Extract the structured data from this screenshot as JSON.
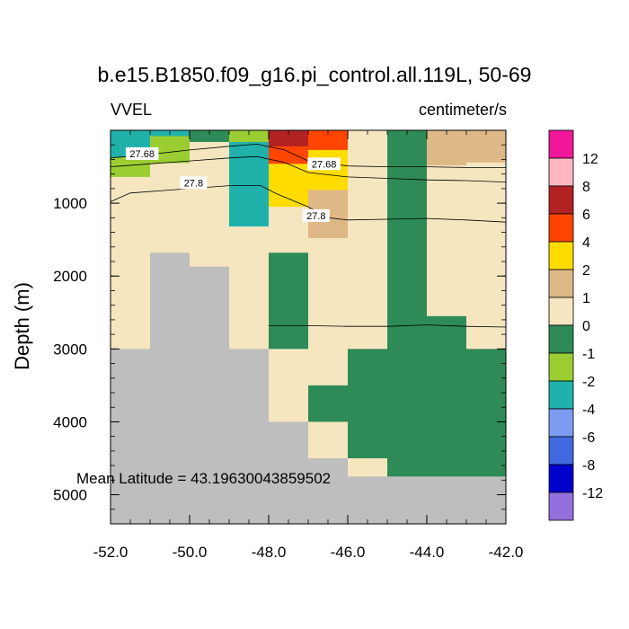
{
  "chart_data": {
    "type": "heatmap",
    "title": "b.e15.B1850.f09_g16.pi_control.all.119L, 50-69",
    "subtitle_left": "VVEL",
    "subtitle_right": "centimeter/s",
    "xlabel": "",
    "ylabel": "Depth (m)",
    "xlim": [
      -52.0,
      -42.0
    ],
    "ylim": [
      5400,
      0
    ],
    "x_ticks": [
      -52.0,
      -50.0,
      -48.0,
      -46.0,
      -44.0,
      -42.0
    ],
    "x_tick_labels": [
      "-52.0",
      "-50.0",
      "-48.0",
      "-46.0",
      "-44.0",
      "-42.0"
    ],
    "y_ticks": [
      1000,
      2000,
      3000,
      4000,
      5000
    ],
    "y_tick_labels": [
      "1000",
      "2000",
      "3000",
      "4000",
      "5000"
    ],
    "annotation": "Mean Latitude = 43.19630043859502",
    "land_color": "#bebebe",
    "colorbar": {
      "labels": [
        "12",
        "8",
        "6",
        "4",
        "2",
        "1",
        "0",
        "-1",
        "-2",
        "-4",
        "-6",
        "-8",
        "-12"
      ],
      "colors_top_to_bottom": [
        "#f0179a",
        "#ffb6c1",
        "#b22222",
        "#ff4500",
        "#ffdc00",
        "#deb887",
        "#f5e6c0",
        "#2e8b57",
        "#9acd32",
        "#20b2aa",
        "#7b9cf0",
        "#4169e1",
        "#0000cd",
        "#9370db"
      ]
    },
    "cells": [
      {
        "x0": -52.0,
        "x1": -51.0,
        "d0": 0,
        "d1": 370,
        "c": "#20b2aa"
      },
      {
        "x0": -52.0,
        "x1": -51.0,
        "d0": 370,
        "d1": 640,
        "c": "#9acd32"
      },
      {
        "x0": -52.0,
        "x1": -51.0,
        "d0": 640,
        "d1": 3000,
        "c": "#f5e6c0"
      },
      {
        "x0": -52.0,
        "x1": -51.0,
        "d0": 3000,
        "d1": 5400,
        "c": "#bebebe"
      },
      {
        "x0": -51.0,
        "x1": -50.0,
        "d0": 0,
        "d1": 80,
        "c": "#20b2aa"
      },
      {
        "x0": -51.0,
        "x1": -50.0,
        "d0": 80,
        "d1": 450,
        "c": "#9acd32"
      },
      {
        "x0": -51.0,
        "x1": -50.0,
        "d0": 450,
        "d1": 1680,
        "c": "#f5e6c0"
      },
      {
        "x0": -51.0,
        "x1": -50.0,
        "d0": 1680,
        "d1": 5400,
        "c": "#bebebe"
      },
      {
        "x0": -50.0,
        "x1": -49.0,
        "d0": 0,
        "d1": 160,
        "c": "#2e8b57"
      },
      {
        "x0": -50.0,
        "x1": -49.0,
        "d0": 160,
        "d1": 1870,
        "c": "#f5e6c0"
      },
      {
        "x0": -50.0,
        "x1": -49.0,
        "d0": 1870,
        "d1": 5400,
        "c": "#bebebe"
      },
      {
        "x0": -49.0,
        "x1": -48.0,
        "d0": 0,
        "d1": 160,
        "c": "#9acd32"
      },
      {
        "x0": -49.0,
        "x1": -48.0,
        "d0": 160,
        "d1": 1320,
        "c": "#20b2aa"
      },
      {
        "x0": -49.0,
        "x1": -48.0,
        "d0": 1320,
        "d1": 3000,
        "c": "#f5e6c0"
      },
      {
        "x0": -49.0,
        "x1": -48.0,
        "d0": 3000,
        "d1": 5400,
        "c": "#bebebe"
      },
      {
        "x0": -48.0,
        "x1": -47.0,
        "d0": 0,
        "d1": 220,
        "c": "#b22222"
      },
      {
        "x0": -48.0,
        "x1": -47.0,
        "d0": 220,
        "d1": 460,
        "c": "#ff4500"
      },
      {
        "x0": -48.0,
        "x1": -47.0,
        "d0": 460,
        "d1": 1050,
        "c": "#ffdc00"
      },
      {
        "x0": -48.0,
        "x1": -47.0,
        "d0": 1050,
        "d1": 1680,
        "c": "#f5e6c0"
      },
      {
        "x0": -48.0,
        "x1": -47.0,
        "d0": 1680,
        "d1": 3000,
        "c": "#2e8b57"
      },
      {
        "x0": -48.0,
        "x1": -47.0,
        "d0": 3000,
        "d1": 4000,
        "c": "#f5e6c0"
      },
      {
        "x0": -48.0,
        "x1": -47.0,
        "d0": 4000,
        "d1": 5400,
        "c": "#bebebe"
      },
      {
        "x0": -47.0,
        "x1": -46.0,
        "d0": 0,
        "d1": 270,
        "c": "#ff4500"
      },
      {
        "x0": -47.0,
        "x1": -46.0,
        "d0": 270,
        "d1": 820,
        "c": "#ffdc00"
      },
      {
        "x0": -47.0,
        "x1": -46.0,
        "d0": 820,
        "d1": 1480,
        "c": "#deb887"
      },
      {
        "x0": -47.0,
        "x1": -46.0,
        "d0": 1480,
        "d1": 3500,
        "c": "#f5e6c0"
      },
      {
        "x0": -47.0,
        "x1": -46.0,
        "d0": 3500,
        "d1": 4000,
        "c": "#2e8b57"
      },
      {
        "x0": -47.0,
        "x1": -46.0,
        "d0": 4000,
        "d1": 4500,
        "c": "#f5e6c0"
      },
      {
        "x0": -47.0,
        "x1": -46.0,
        "d0": 4500,
        "d1": 5400,
        "c": "#bebebe"
      },
      {
        "x0": -46.0,
        "x1": -45.0,
        "d0": 0,
        "d1": 3000,
        "c": "#f5e6c0"
      },
      {
        "x0": -46.0,
        "x1": -45.0,
        "d0": 3000,
        "d1": 4500,
        "c": "#2e8b57"
      },
      {
        "x0": -46.0,
        "x1": -45.0,
        "d0": 4500,
        "d1": 4750,
        "c": "#f5e6c0"
      },
      {
        "x0": -46.0,
        "x1": -45.0,
        "d0": 4750,
        "d1": 5400,
        "c": "#bebebe"
      },
      {
        "x0": -45.0,
        "x1": -44.0,
        "d0": 0,
        "d1": 4750,
        "c": "#2e8b57"
      },
      {
        "x0": -45.0,
        "x1": -44.0,
        "d0": 4750,
        "d1": 5400,
        "c": "#bebebe"
      },
      {
        "x0": -44.0,
        "x1": -43.0,
        "d0": 0,
        "d1": 480,
        "c": "#deb887"
      },
      {
        "x0": -44.0,
        "x1": -43.0,
        "d0": 480,
        "d1": 2550,
        "c": "#f5e6c0"
      },
      {
        "x0": -44.0,
        "x1": -43.0,
        "d0": 2550,
        "d1": 4750,
        "c": "#2e8b57"
      },
      {
        "x0": -44.0,
        "x1": -43.0,
        "d0": 4750,
        "d1": 5400,
        "c": "#bebebe"
      },
      {
        "x0": -43.0,
        "x1": -42.0,
        "d0": 0,
        "d1": 440,
        "c": "#deb887"
      },
      {
        "x0": -43.0,
        "x1": -42.0,
        "d0": 440,
        "d1": 3000,
        "c": "#f5e6c0"
      },
      {
        "x0": -43.0,
        "x1": -42.0,
        "d0": 3000,
        "d1": 4750,
        "c": "#2e8b57"
      },
      {
        "x0": -43.0,
        "x1": -42.0,
        "d0": 4750,
        "d1": 5400,
        "c": "#bebebe"
      }
    ],
    "contours": [
      {
        "level": "27.68",
        "points": [
          [
            -52.0,
            380
          ],
          [
            -51.0,
            330
          ],
          [
            -50.0,
            270
          ],
          [
            -49.0,
            220
          ],
          [
            -48.3,
            190
          ],
          [
            -47.6,
            270
          ],
          [
            -47.0,
            420
          ],
          [
            -46.0,
            490
          ],
          [
            -45.0,
            500
          ],
          [
            -44.0,
            500
          ],
          [
            -43.0,
            510
          ],
          [
            -42.0,
            510
          ]
        ],
        "label_at": [
          [
            -51.2,
            320
          ],
          [
            -46.6,
            460
          ]
        ]
      },
      {
        "level": "27.68",
        "points": [
          [
            -52.0,
            500
          ],
          [
            -51.0,
            460
          ],
          [
            -50.0,
            420
          ],
          [
            -49.0,
            380
          ],
          [
            -48.3,
            360
          ],
          [
            -47.6,
            440
          ],
          [
            -47.0,
            580
          ],
          [
            -46.0,
            640
          ],
          [
            -45.0,
            660
          ],
          [
            -44.0,
            680
          ],
          [
            -43.0,
            690
          ],
          [
            -42.0,
            710
          ]
        ],
        "label_at": []
      },
      {
        "level": "27.8",
        "points": [
          [
            -52.0,
            980
          ],
          [
            -51.5,
            860
          ],
          [
            -50.5,
            820
          ],
          [
            -49.0,
            760
          ],
          [
            -48.2,
            760
          ],
          [
            -47.8,
            870
          ],
          [
            -47.0,
            1050
          ],
          [
            -46.5,
            1200
          ],
          [
            -46.0,
            1230
          ],
          [
            -45.0,
            1220
          ],
          [
            -44.0,
            1210
          ],
          [
            -43.0,
            1230
          ],
          [
            -42.0,
            1260
          ]
        ],
        "label_at": [
          [
            -49.9,
            720
          ],
          [
            -46.8,
            1170
          ]
        ]
      },
      {
        "level": "",
        "points": [
          [
            -48.0,
            2680
          ],
          [
            -47.0,
            2680
          ],
          [
            -46.0,
            2690
          ],
          [
            -45.0,
            2690
          ],
          [
            -44.0,
            2670
          ],
          [
            -43.0,
            2690
          ],
          [
            -42.0,
            2700
          ]
        ],
        "label_at": []
      }
    ]
  }
}
